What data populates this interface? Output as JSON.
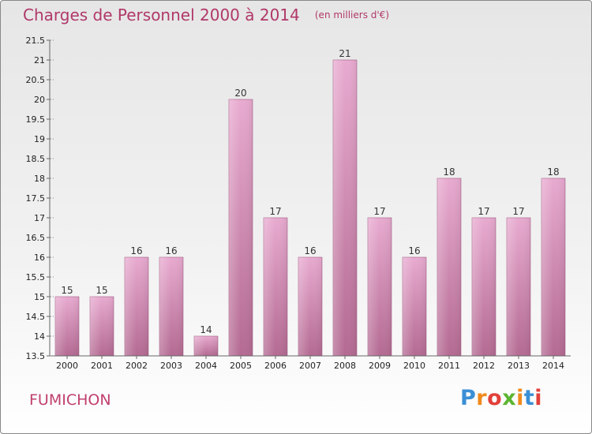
{
  "header": {
    "title": "Charges de Personnel 2000 à 2014",
    "subtitle": "(en milliers d'€)"
  },
  "footer": {
    "commune": "FUMICHON",
    "logo_text": "Proxiti"
  },
  "colors": {
    "title": "#b03868",
    "bar_light": "#e8aad0",
    "bar_dark": "#b46a92",
    "axis": "#666666",
    "grid_tick_dash": "#888888"
  },
  "chart_data": {
    "type": "bar",
    "title": "Charges de Personnel 2000 à 2014",
    "subtitle": "(en milliers d'€)",
    "categories": [
      "2000",
      "2001",
      "2002",
      "2003",
      "2004",
      "2005",
      "2006",
      "2007",
      "2008",
      "2009",
      "2010",
      "2011",
      "2012",
      "2013",
      "2014"
    ],
    "values": [
      15,
      15,
      16,
      16,
      14,
      20,
      17,
      16,
      21,
      17,
      16,
      18,
      17,
      17,
      18
    ],
    "data_labels": [
      "15",
      "15",
      "16",
      "16",
      "14",
      "20",
      "17",
      "16",
      "21",
      "17",
      "16",
      "18",
      "17",
      "17",
      "18"
    ],
    "ylim": [
      13.5,
      21.5
    ],
    "yticks": [
      13.5,
      14,
      14.5,
      15,
      15.5,
      16,
      16.5,
      17,
      17.5,
      18,
      18.5,
      19,
      19.5,
      20,
      20.5,
      21,
      21.5
    ],
    "ytick_labels": [
      "13.5",
      "14",
      "14.5",
      "15",
      "15.5",
      "16",
      "16.5",
      "17",
      "17.5",
      "18",
      "18.5",
      "19",
      "19.5",
      "20",
      "20.5",
      "21",
      "21.5"
    ],
    "xlabel": "",
    "ylabel": "",
    "grid": false,
    "legend": "none"
  }
}
